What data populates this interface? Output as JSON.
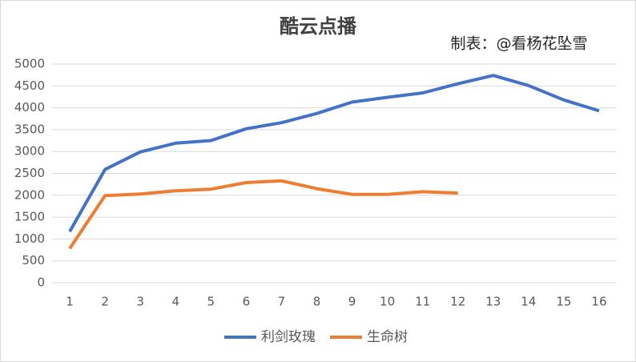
{
  "chart_data": {
    "type": "line",
    "title": "酷云点播",
    "annotation": "制表：@看杨花坠雪",
    "categories": [
      "1",
      "2",
      "3",
      "4",
      "5",
      "6",
      "7",
      "8",
      "9",
      "10",
      "11",
      "12",
      "13",
      "14",
      "15",
      "16"
    ],
    "series": [
      {
        "name": "利剑玫瑰",
        "color": "#4472c4",
        "values": [
          1170,
          2590,
          2990,
          3190,
          3250,
          3520,
          3660,
          3870,
          4130,
          4240,
          4340,
          4550,
          4740,
          4510,
          4180,
          3930
        ]
      },
      {
        "name": "生命树",
        "color": "#ed7d31",
        "values": [
          780,
          1990,
          2030,
          2100,
          2140,
          2290,
          2330,
          2150,
          2020,
          2020,
          2080,
          2050,
          null,
          null,
          null,
          null
        ]
      }
    ],
    "ylim": [
      0,
      5000
    ],
    "yticks": [
      0,
      500,
      1000,
      1500,
      2000,
      2500,
      3000,
      3500,
      4000,
      4500,
      5000
    ],
    "grid": true,
    "legend": "bottom"
  }
}
